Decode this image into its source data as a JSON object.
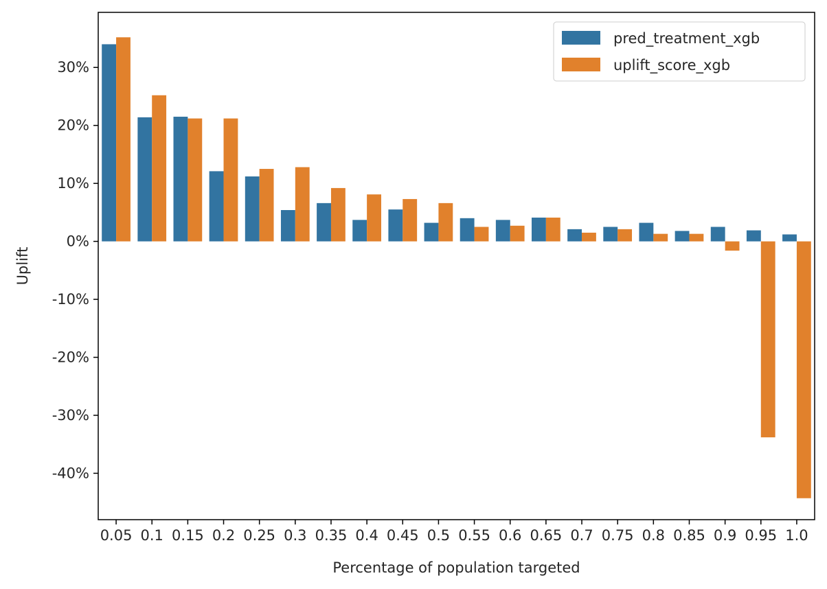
{
  "chart_data": {
    "type": "bar",
    "xlabel": "Percentage of population targeted",
    "ylabel": "Uplift",
    "categories": [
      "0.05",
      "0.1",
      "0.15",
      "0.2",
      "0.25",
      "0.3",
      "0.35",
      "0.4",
      "0.45",
      "0.5",
      "0.55",
      "0.6",
      "0.65",
      "0.7",
      "0.75",
      "0.8",
      "0.85",
      "0.9",
      "0.95",
      "1.0"
    ],
    "series": [
      {
        "name": "pred_treatment_xgb",
        "color": "#3274a1",
        "values": [
          0.34,
          0.214,
          0.215,
          0.121,
          0.112,
          0.054,
          0.066,
          0.037,
          0.055,
          0.032,
          0.04,
          0.037,
          0.041,
          0.021,
          0.025,
          0.032,
          0.018,
          0.025,
          0.019,
          0.012
        ]
      },
      {
        "name": "uplift_score_xgb",
        "color": "#e1812c",
        "values": [
          0.352,
          0.252,
          0.212,
          0.212,
          0.125,
          0.128,
          0.092,
          0.081,
          0.073,
          0.066,
          0.025,
          0.027,
          0.041,
          0.015,
          0.021,
          0.013,
          0.013,
          -0.016,
          -0.338,
          -0.443
        ]
      }
    ],
    "ylim": [
      -0.48,
      0.395
    ],
    "yticks": [
      0.3,
      0.2,
      0.1,
      0.0,
      -0.1,
      -0.2,
      -0.3,
      -0.4
    ],
    "ytick_labels": [
      "30%",
      "20%",
      "10%",
      "0%",
      "-10%",
      "-20%",
      "-30%",
      "-40%"
    ],
    "legend_position": "top-right",
    "grid": false
  }
}
